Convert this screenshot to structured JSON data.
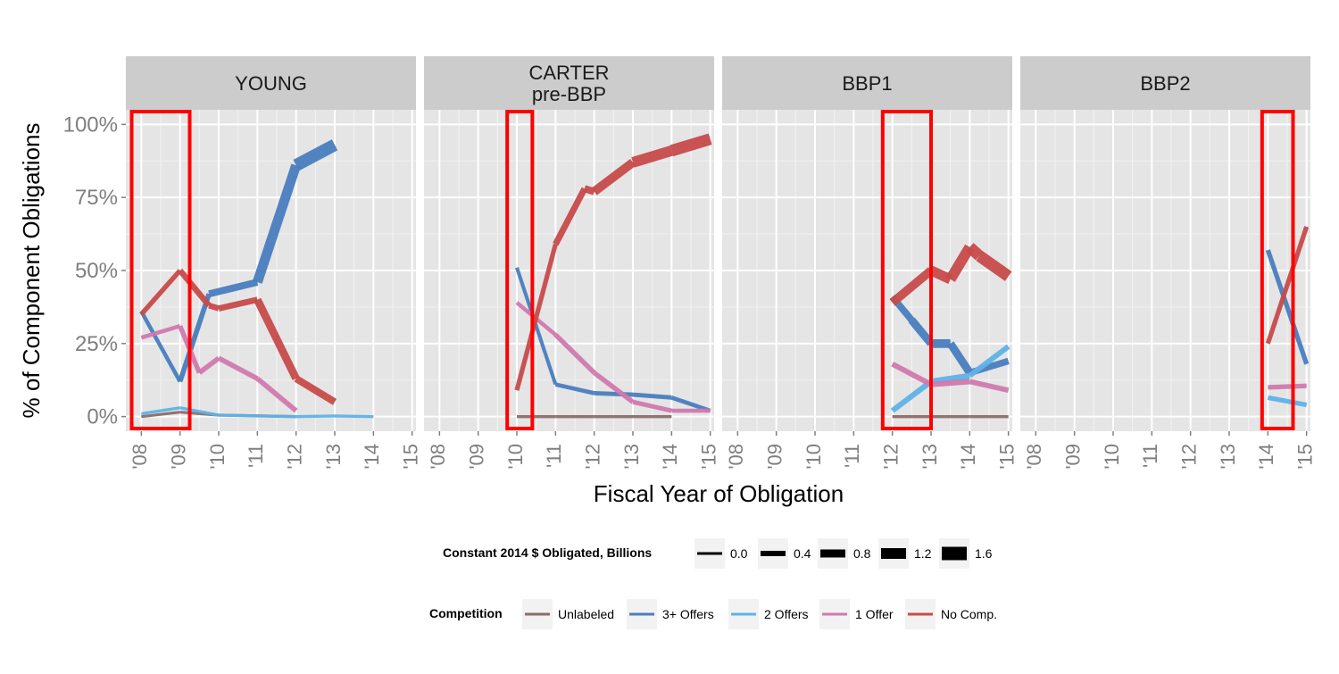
{
  "chart_data": {
    "type": "line",
    "ylabel": "% of Component Obligations",
    "xlabel": "Fiscal Year of Obligation",
    "ylim": [
      -0.05,
      1.05
    ],
    "yticks": [
      0,
      0.25,
      0.5,
      0.75,
      1.0
    ],
    "ytick_labels": [
      "0%",
      "25%",
      "50%",
      "75%",
      "100%"
    ],
    "xlim": [
      2007.6,
      2015.1
    ],
    "xticks": [
      2008,
      2009,
      2010,
      2011,
      2012,
      2013,
      2014,
      2015
    ],
    "xtick_labels": [
      "'08",
      "'09",
      "'10",
      "'11",
      "'12",
      "'13",
      "'14",
      "'15"
    ],
    "grid": true,
    "series_colors": {
      "Unlabeled": "#8C6D6A",
      "3+ Offers": "#4A7EBF",
      "2 Offers": "#5FB3E8",
      "1 Offer": "#D07AAE",
      "No Comp.": "#C84B4B"
    },
    "panels": [
      {
        "label": "YOUNG",
        "series": [
          {
            "name": "Unlabeled",
            "x": [
              2008,
              2009,
              2010,
              2011,
              2012
            ],
            "values": [
              0.0,
              0.015,
              0.005,
              0.003,
              0.0
            ],
            "widths": [
              0.02,
              0.02,
              0.02,
              0.02,
              0.02
            ]
          },
          {
            "name": "3+ Offers",
            "x": [
              2008,
              2009,
              2009.75,
              2011,
              2012,
              2013
            ],
            "values": [
              0.36,
              0.12,
              0.42,
              0.46,
              0.86,
              0.93
            ],
            "widths": [
              0.25,
              0.15,
              0.55,
              0.75,
              1.4,
              1.5
            ]
          },
          {
            "name": "2 Offers",
            "x": [
              2008,
              2009,
              2010,
              2011,
              2012,
              2013,
              2014
            ],
            "values": [
              0.01,
              0.03,
              0.005,
              0.002,
              0.0,
              0.002,
              0.0
            ],
            "widths": [
              0.05,
              0.05,
              0.05,
              0.05,
              0.05,
              0.05,
              0.05
            ]
          },
          {
            "name": "1 Offer",
            "x": [
              2008,
              2009,
              2009.5,
              2010,
              2011,
              2012
            ],
            "values": [
              0.27,
              0.31,
              0.15,
              0.2,
              0.13,
              0.02
            ],
            "widths": [
              0.15,
              0.3,
              0.35,
              0.35,
              0.35,
              0.35
            ]
          },
          {
            "name": "No Comp.",
            "x": [
              2008,
              2009,
              2009.75,
              2010,
              2011,
              2012,
              2013
            ],
            "values": [
              0.35,
              0.5,
              0.38,
              0.37,
              0.4,
              0.13,
              0.05
            ],
            "widths": [
              0.2,
              0.45,
              0.5,
              0.45,
              0.55,
              1.0,
              0.35
            ]
          }
        ]
      },
      {
        "label": "CARTER\npre-BBP",
        "series": [
          {
            "name": "Unlabeled",
            "x": [
              2010,
              2011,
              2012,
              2013,
              2014
            ],
            "values": [
              0.0,
              0.0,
              0.0,
              0.0,
              0.0
            ],
            "widths": [
              0.05,
              0.05,
              0.05,
              0.05,
              0.05
            ]
          },
          {
            "name": "3+ Offers",
            "x": [
              2010,
              2011,
              2012,
              2013,
              2014,
              2015
            ],
            "values": [
              0.51,
              0.11,
              0.08,
              0.075,
              0.065,
              0.02
            ],
            "widths": [
              0.1,
              0.2,
              0.25,
              0.25,
              0.25,
              0.2
            ]
          },
          {
            "name": "1 Offer",
            "x": [
              2010,
              2011,
              2012,
              2013,
              2014,
              2015
            ],
            "values": [
              0.39,
              0.28,
              0.15,
              0.05,
              0.02,
              0.02
            ],
            "widths": [
              0.1,
              0.3,
              0.35,
              0.3,
              0.25,
              0.2
            ]
          },
          {
            "name": "No Comp.",
            "x": [
              2010,
              2011,
              2011.75,
              2012,
              2013,
              2014,
              2015
            ],
            "values": [
              0.09,
              0.59,
              0.78,
              0.77,
              0.87,
              0.91,
              0.95
            ],
            "widths": [
              0.1,
              0.5,
              0.6,
              0.75,
              1.1,
              1.3,
              1.4
            ]
          }
        ]
      },
      {
        "label": "BBP1",
        "series": [
          {
            "name": "Unlabeled",
            "x": [
              2012,
              2013,
              2014,
              2015
            ],
            "values": [
              0.0,
              0.0,
              0.0,
              0.0
            ],
            "widths": [
              0.05,
              0.05,
              0.05,
              0.05
            ]
          },
          {
            "name": "3+ Offers",
            "x": [
              2012,
              2012.5,
              2013,
              2013.5,
              2014,
              2015
            ],
            "values": [
              0.41,
              0.33,
              0.25,
              0.25,
              0.15,
              0.19
            ],
            "widths": [
              0.55,
              0.7,
              0.9,
              0.9,
              0.7,
              0.5
            ]
          },
          {
            "name": "2 Offers",
            "x": [
              2012,
              2013,
              2014,
              2015
            ],
            "values": [
              0.02,
              0.12,
              0.14,
              0.24
            ],
            "widths": [
              0.35,
              0.5,
              0.45,
              0.35
            ]
          },
          {
            "name": "1 Offer",
            "x": [
              2012,
              2013,
              2014,
              2015
            ],
            "values": [
              0.18,
              0.11,
              0.12,
              0.09
            ],
            "widths": [
              0.35,
              0.45,
              0.4,
              0.35
            ]
          },
          {
            "name": "No Comp.",
            "x": [
              2012,
              2013,
              2013.5,
              2014,
              2014.25,
              2015
            ],
            "values": [
              0.39,
              0.5,
              0.47,
              0.58,
              0.55,
              0.48
            ],
            "widths": [
              0.7,
              1.1,
              1.1,
              1.3,
              1.3,
              1.4
            ]
          }
        ]
      },
      {
        "label": "BBP2",
        "series": [
          {
            "name": "3+ Offers",
            "x": [
              2014,
              2015
            ],
            "values": [
              0.57,
              0.18
            ],
            "widths": [
              0.3,
              0.3
            ]
          },
          {
            "name": "2 Offers",
            "x": [
              2014,
              2015
            ],
            "values": [
              0.065,
              0.04
            ],
            "widths": [
              0.3,
              0.3
            ]
          },
          {
            "name": "1 Offer",
            "x": [
              2014,
              2015
            ],
            "values": [
              0.1,
              0.105
            ],
            "widths": [
              0.3,
              0.3
            ]
          },
          {
            "name": "No Comp.",
            "x": [
              2014,
              2015
            ],
            "values": [
              0.25,
              0.65
            ],
            "widths": [
              0.3,
              0.3
            ]
          }
        ]
      }
    ],
    "highlight_boxes": [
      {
        "panel": 0,
        "x_range": [
          2007.75,
          2009.25
        ]
      },
      {
        "panel": 1,
        "x_range": [
          2009.75,
          2010.4
        ]
      },
      {
        "panel": 2,
        "x_range": [
          2011.75,
          2013.0
        ]
      },
      {
        "panel": 3,
        "x_range": [
          2013.85,
          2014.65
        ]
      }
    ],
    "highlight_color": "#FF0000",
    "size_legend": {
      "title": "Constant 2014 $ Obligated, Billions",
      "values": [
        0.0,
        0.4,
        0.8,
        1.2,
        1.6
      ],
      "labels": [
        "0.0",
        "0.4",
        "0.8",
        "1.2",
        "1.6"
      ]
    },
    "color_legend": {
      "title": "Competition",
      "labels": [
        "Unlabeled",
        "3+ Offers",
        "2 Offers",
        "1 Offer",
        "No Comp."
      ]
    }
  }
}
